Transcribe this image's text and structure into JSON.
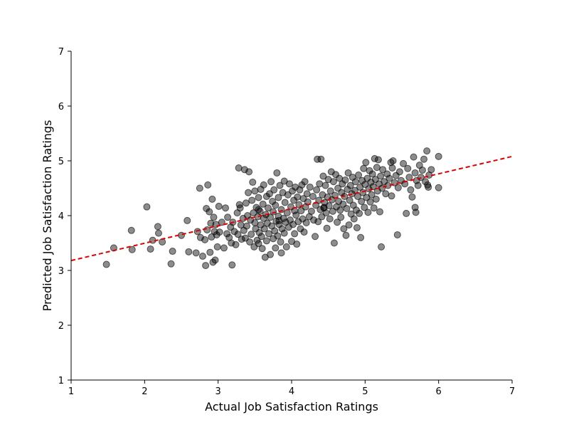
{
  "chart_data": {
    "type": "scatter",
    "title": "",
    "xlabel": "Actual Job Satisfaction Ratings",
    "ylabel": "Predicted Job Satisfaction Ratings",
    "xlim": [
      1,
      7
    ],
    "ylim": [
      1,
      7
    ],
    "xticks": [
      "1",
      "2",
      "3",
      "4",
      "5",
      "6",
      "7"
    ],
    "yticks": [
      "1",
      "2",
      "3",
      "4",
      "5",
      "6",
      "7"
    ],
    "grid": false,
    "legend": "none",
    "colors": {
      "points": "#000000",
      "trendline": "#e00000"
    },
    "trendline": {
      "style": "dashed",
      "x": [
        1,
        7
      ],
      "y": [
        3.18,
        5.08
      ]
    },
    "points": [
      [
        1.48,
        3.11
      ],
      [
        1.58,
        3.41
      ],
      [
        1.82,
        3.73
      ],
      [
        1.83,
        3.38
      ],
      [
        2.03,
        4.16
      ],
      [
        2.08,
        3.39
      ],
      [
        2.11,
        3.55
      ],
      [
        2.18,
        3.8
      ],
      [
        2.19,
        3.68
      ],
      [
        2.24,
        3.52
      ],
      [
        2.36,
        3.12
      ],
      [
        2.38,
        3.35
      ],
      [
        2.5,
        3.64
      ],
      [
        2.58,
        3.91
      ],
      [
        2.6,
        3.34
      ],
      [
        2.7,
        3.32
      ],
      [
        2.72,
        3.71
      ],
      [
        2.75,
        4.5
      ],
      [
        2.76,
        3.6
      ],
      [
        2.79,
        3.26
      ],
      [
        2.82,
        3.56
      ],
      [
        2.83,
        3.09
      ],
      [
        2.84,
        4.13
      ],
      [
        2.85,
        3.74
      ],
      [
        2.86,
        4.56
      ],
      [
        2.88,
        4.07
      ],
      [
        2.89,
        3.33
      ],
      [
        2.9,
        3.86
      ],
      [
        2.91,
        3.61
      ],
      [
        2.92,
        4.3
      ],
      [
        2.93,
        3.15
      ],
      [
        2.94,
        3.97
      ],
      [
        2.95,
        3.71
      ],
      [
        2.96,
        3.19
      ],
      [
        2.97,
        3.84
      ],
      [
        2.98,
        3.65
      ],
      [
        2.99,
        3.43
      ],
      [
        3.01,
        4.17
      ],
      [
        3.02,
        3.7
      ],
      [
        3.05,
        3.88
      ],
      [
        3.08,
        3.41
      ],
      [
        3.1,
        4.14
      ],
      [
        3.12,
        3.67
      ],
      [
        3.13,
        3.97
      ],
      [
        3.15,
        3.6
      ],
      [
        3.17,
        3.79
      ],
      [
        3.18,
        3.5
      ],
      [
        3.19,
        3.1
      ],
      [
        3.2,
        3.88
      ],
      [
        3.22,
        3.71
      ],
      [
        3.24,
        3.47
      ],
      [
        3.26,
        4.05
      ],
      [
        3.27,
        3.66
      ],
      [
        3.28,
        4.87
      ],
      [
        3.29,
        4.2
      ],
      [
        3.3,
        4.14
      ],
      [
        3.31,
        3.83
      ],
      [
        3.32,
        3.57
      ],
      [
        3.34,
        3.95
      ],
      [
        3.35,
        3.73
      ],
      [
        3.36,
        4.84
      ],
      [
        3.37,
        3.59
      ],
      [
        3.38,
        4.23
      ],
      [
        3.39,
        3.81
      ],
      [
        3.4,
        4.0
      ],
      [
        3.41,
        4.42
      ],
      [
        3.42,
        4.8
      ],
      [
        3.43,
        3.52
      ],
      [
        3.44,
        3.92
      ],
      [
        3.45,
        3.66
      ],
      [
        3.46,
        4.28
      ],
      [
        3.47,
        4.61
      ],
      [
        3.48,
        4.05
      ],
      [
        3.49,
        3.43
      ],
      [
        3.5,
        3.87
      ],
      [
        3.5,
        4.45
      ],
      [
        3.51,
        3.76
      ],
      [
        3.52,
        4.15
      ],
      [
        3.53,
        3.55
      ],
      [
        3.54,
        3.98
      ],
      [
        3.55,
        4.33
      ],
      [
        3.55,
        3.49
      ],
      [
        3.56,
        3.69
      ],
      [
        3.57,
        4.08
      ],
      [
        3.58,
        3.83
      ],
      [
        3.58,
        4.48
      ],
      [
        3.59,
        3.62
      ],
      [
        3.6,
        3.4
      ],
      [
        3.61,
        4.21
      ],
      [
        3.62,
        3.95
      ],
      [
        3.62,
        4.56
      ],
      [
        3.63,
        3.76
      ],
      [
        3.64,
        3.24
      ],
      [
        3.65,
        4.02
      ],
      [
        3.66,
        4.35
      ],
      [
        3.66,
        3.54
      ],
      [
        3.67,
        3.86
      ],
      [
        3.68,
        4.14
      ],
      [
        3.69,
        3.67
      ],
      [
        3.7,
        4.4
      ],
      [
        3.71,
        3.29
      ],
      [
        3.71,
        3.97
      ],
      [
        3.72,
        4.62
      ],
      [
        3.73,
        3.81
      ],
      [
        3.74,
        4.26
      ],
      [
        3.75,
        3.58
      ],
      [
        3.75,
        4.07
      ],
      [
        3.76,
        4.47
      ],
      [
        3.77,
        3.72
      ],
      [
        3.78,
        3.41
      ],
      [
        3.78,
        4.19
      ],
      [
        3.79,
        3.9
      ],
      [
        3.8,
        4.78
      ],
      [
        3.81,
        3.63
      ],
      [
        3.82,
        4.33
      ],
      [
        3.82,
        3.99
      ],
      [
        3.83,
        3.84
      ],
      [
        3.84,
        4.55
      ],
      [
        3.85,
        3.52
      ],
      [
        3.86,
        4.11
      ],
      [
        3.86,
        3.32
      ],
      [
        3.87,
        3.76
      ],
      [
        3.88,
        4.42
      ],
      [
        3.89,
        3.95
      ],
      [
        3.9,
        4.63
      ],
      [
        3.9,
        3.68
      ],
      [
        3.91,
        4.24
      ],
      [
        3.92,
        3.88
      ],
      [
        3.93,
        3.43
      ],
      [
        3.94,
        4.05
      ],
      [
        3.95,
        4.38
      ],
      [
        3.96,
        3.79
      ],
      [
        3.97,
        4.58
      ],
      [
        3.98,
        3.92
      ],
      [
        3.99,
        4.16
      ],
      [
        4.0,
        3.53
      ],
      [
        4.01,
        4.45
      ],
      [
        4.02,
        3.84
      ],
      [
        4.03,
        4.28
      ],
      [
        4.04,
        3.67
      ],
      [
        4.05,
        4.52
      ],
      [
        4.06,
        4.01
      ],
      [
        4.07,
        3.48
      ],
      [
        4.08,
        4.34
      ],
      [
        4.09,
        3.89
      ],
      [
        4.1,
        4.2
      ],
      [
        4.11,
        4.47
      ],
      [
        4.12,
        3.76
      ],
      [
        4.13,
        4.09
      ],
      [
        4.14,
        4.56
      ],
      [
        4.15,
        3.94
      ],
      [
        4.16,
        4.31
      ],
      [
        4.17,
        3.7
      ],
      [
        4.18,
        4.62
      ],
      [
        4.19,
        4.16
      ],
      [
        4.2,
        3.87
      ],
      [
        4.21,
        4.4
      ],
      [
        4.22,
        4.25
      ],
      [
        4.24,
        3.98
      ],
      [
        4.25,
        4.52
      ],
      [
        4.27,
        4.08
      ],
      [
        4.29,
        4.35
      ],
      [
        4.3,
        3.92
      ],
      [
        4.32,
        3.62
      ],
      [
        4.33,
        4.19
      ],
      [
        4.34,
        4.47
      ],
      [
        4.35,
        5.03
      ],
      [
        4.36,
        3.89
      ],
      [
        4.37,
        4.28
      ],
      [
        4.38,
        4.58
      ],
      [
        4.39,
        4.11
      ],
      [
        4.4,
        5.03
      ],
      [
        4.41,
        3.98
      ],
      [
        4.42,
        4.38
      ],
      [
        4.43,
        4.72
      ],
      [
        4.44,
        4.14
      ],
      [
        4.45,
        4.24
      ],
      [
        4.46,
        4.55
      ],
      [
        4.47,
        4.05
      ],
      [
        4.48,
        3.77
      ],
      [
        4.49,
        4.34
      ],
      [
        4.5,
        4.66
      ],
      [
        4.51,
        4.18
      ],
      [
        4.52,
        3.94
      ],
      [
        4.53,
        4.45
      ],
      [
        4.54,
        4.8
      ],
      [
        4.55,
        4.29
      ],
      [
        4.56,
        4.08
      ],
      [
        4.57,
        4.62
      ],
      [
        4.58,
        3.5
      ],
      [
        4.59,
        4.37
      ],
      [
        4.6,
        4.75
      ],
      [
        4.61,
        4.16
      ],
      [
        4.62,
        3.88
      ],
      [
        4.63,
        4.5
      ],
      [
        4.64,
        4.26
      ],
      [
        4.65,
        4.68
      ],
      [
        4.66,
        4.1
      ],
      [
        4.67,
        3.97
      ],
      [
        4.68,
        4.42
      ],
      [
        4.69,
        4.58
      ],
      [
        4.7,
        4.21
      ],
      [
        4.71,
        3.76
      ],
      [
        4.72,
        4.35
      ],
      [
        4.73,
        4.65
      ],
      [
        4.74,
        3.64
      ],
      [
        4.75,
        4.13
      ],
      [
        4.76,
        4.48
      ],
      [
        4.77,
        4.78
      ],
      [
        4.78,
        3.83
      ],
      [
        4.79,
        4.28
      ],
      [
        4.8,
        4.55
      ],
      [
        4.81,
        4.03
      ],
      [
        4.82,
        4.4
      ],
      [
        4.83,
        4.7
      ],
      [
        4.84,
        4.19
      ],
      [
        4.85,
        3.94
      ],
      [
        4.86,
        4.46
      ],
      [
        4.87,
        4.62
      ],
      [
        4.88,
        4.1
      ],
      [
        4.89,
        3.78
      ],
      [
        4.9,
        4.35
      ],
      [
        4.91,
        4.74
      ],
      [
        4.92,
        4.04
      ],
      [
        4.93,
        4.52
      ],
      [
        4.94,
        3.6
      ],
      [
        4.95,
        4.26
      ],
      [
        4.96,
        4.64
      ],
      [
        4.97,
        4.42
      ],
      [
        4.98,
        4.86
      ],
      [
        4.99,
        4.15
      ],
      [
        5.0,
        4.57
      ],
      [
        5.01,
        4.97
      ],
      [
        5.02,
        4.33
      ],
      [
        5.03,
        4.68
      ],
      [
        5.04,
        4.06
      ],
      [
        5.05,
        4.49
      ],
      [
        5.06,
        4.82
      ],
      [
        5.07,
        4.25
      ],
      [
        5.08,
        4.61
      ],
      [
        5.09,
        4.38
      ],
      [
        5.1,
        4.76
      ],
      [
        5.11,
        4.53
      ],
      [
        5.12,
        4.14
      ],
      [
        5.13,
        5.04
      ],
      [
        5.14,
        4.66
      ],
      [
        5.15,
        4.3
      ],
      [
        5.16,
        4.88
      ],
      [
        5.17,
        4.45
      ],
      [
        5.18,
        5.02
      ],
      [
        5.19,
        4.58
      ],
      [
        5.2,
        4.07
      ],
      [
        5.21,
        4.72
      ],
      [
        5.22,
        3.43
      ],
      [
        5.23,
        4.5
      ],
      [
        5.24,
        4.84
      ],
      [
        5.26,
        4.62
      ],
      [
        5.28,
        4.4
      ],
      [
        5.3,
        4.76
      ],
      [
        5.31,
        4.55
      ],
      [
        5.33,
        4.68
      ],
      [
        5.35,
        4.97
      ],
      [
        5.36,
        4.36
      ],
      [
        5.37,
        4.87
      ],
      [
        5.38,
        5.0
      ],
      [
        5.4,
        4.6
      ],
      [
        5.42,
        4.73
      ],
      [
        5.44,
        3.65
      ],
      [
        5.45,
        4.51
      ],
      [
        5.47,
        4.8
      ],
      [
        5.49,
        4.64
      ],
      [
        5.52,
        4.95
      ],
      [
        5.54,
        4.58
      ],
      [
        5.56,
        4.04
      ],
      [
        5.58,
        4.86
      ],
      [
        5.6,
        4.7
      ],
      [
        5.62,
        4.47
      ],
      [
        5.64,
        4.34
      ],
      [
        5.66,
        5.07
      ],
      [
        5.68,
        4.78
      ],
      [
        5.69,
        4.06
      ],
      [
        5.7,
        4.64
      ],
      [
        5.72,
        4.55
      ],
      [
        5.74,
        4.92
      ],
      [
        5.76,
        4.7
      ],
      [
        5.78,
        4.83
      ],
      [
        5.8,
        5.03
      ],
      [
        5.82,
        4.62
      ],
      [
        5.84,
        5.18
      ],
      [
        5.85,
        4.56
      ],
      [
        5.87,
        4.74
      ],
      [
        5.9,
        4.84
      ],
      [
        6.0,
        5.08
      ],
      [
        6.0,
        4.51
      ],
      [
        5.86,
        4.52
      ],
      [
        5.68,
        4.15
      ],
      [
        4.44,
        4.15
      ],
      [
        3.83,
        3.91
      ],
      [
        4.04,
        4.09
      ],
      [
        3.55,
        4.11
      ]
    ]
  }
}
